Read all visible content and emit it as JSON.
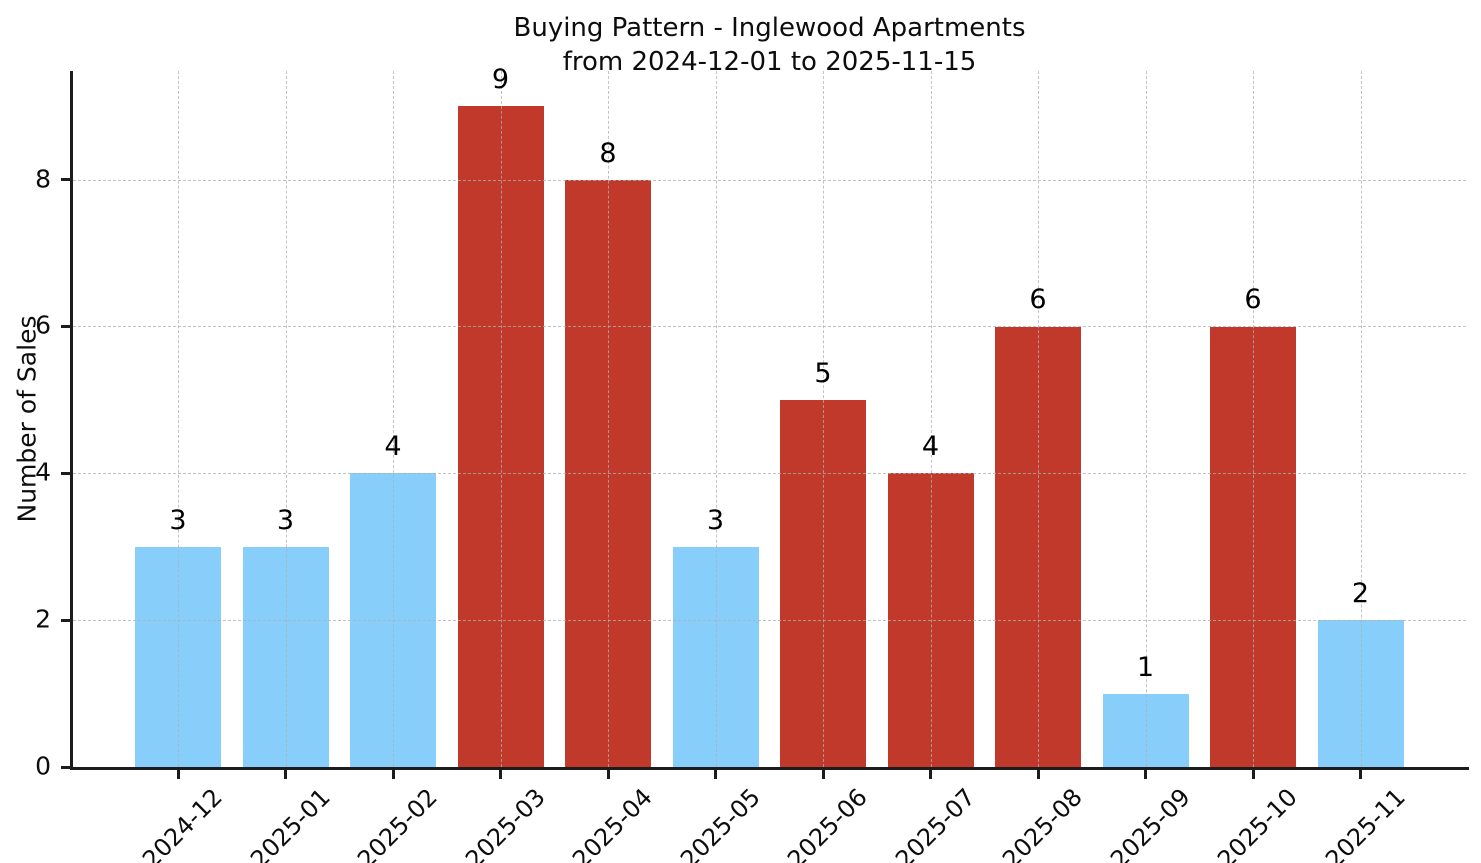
{
  "chart_data": {
    "type": "bar",
    "title_lines": [
      "Buying Pattern - Inglewood Apartments",
      "from 2024-12-01 to 2025-11-15"
    ],
    "title": "Buying Pattern - Inglewood Apartments from 2024-12-01 to 2025-11-15",
    "xlabel": "",
    "ylabel": "Number of Sales",
    "categories": [
      "2024-12",
      "2025-01",
      "2025-02",
      "2025-03",
      "2025-04",
      "2025-05",
      "2025-06",
      "2025-07",
      "2025-08",
      "2025-09",
      "2025-10",
      "2025-11"
    ],
    "values": [
      3,
      3,
      4,
      9,
      8,
      3,
      5,
      4,
      6,
      1,
      6,
      2
    ],
    "value_labels": [
      "3",
      "3",
      "4",
      "9",
      "8",
      "3",
      "5",
      "4",
      "6",
      "1",
      "6",
      "2"
    ],
    "bar_colors": [
      "#87CEFA",
      "#87CEFA",
      "#87CEFA",
      "#C0392B",
      "#C0392B",
      "#87CEFA",
      "#C0392B",
      "#C0392B",
      "#C0392B",
      "#87CEFA",
      "#C0392B",
      "#87CEFA"
    ],
    "colors": {
      "blue_bar": "#87CEFA",
      "red_bar": "#C0392B",
      "spine": "#1c1c1c",
      "grid": "#cccccc",
      "text": "#000000",
      "background": "#ffffff"
    },
    "yticks": [
      0,
      2,
      4,
      6,
      8
    ],
    "ylim": [
      0,
      9.48
    ],
    "grid": {
      "visible": true,
      "style": "dashed",
      "axis": "both",
      "above_bars": true
    },
    "legend": "none"
  }
}
